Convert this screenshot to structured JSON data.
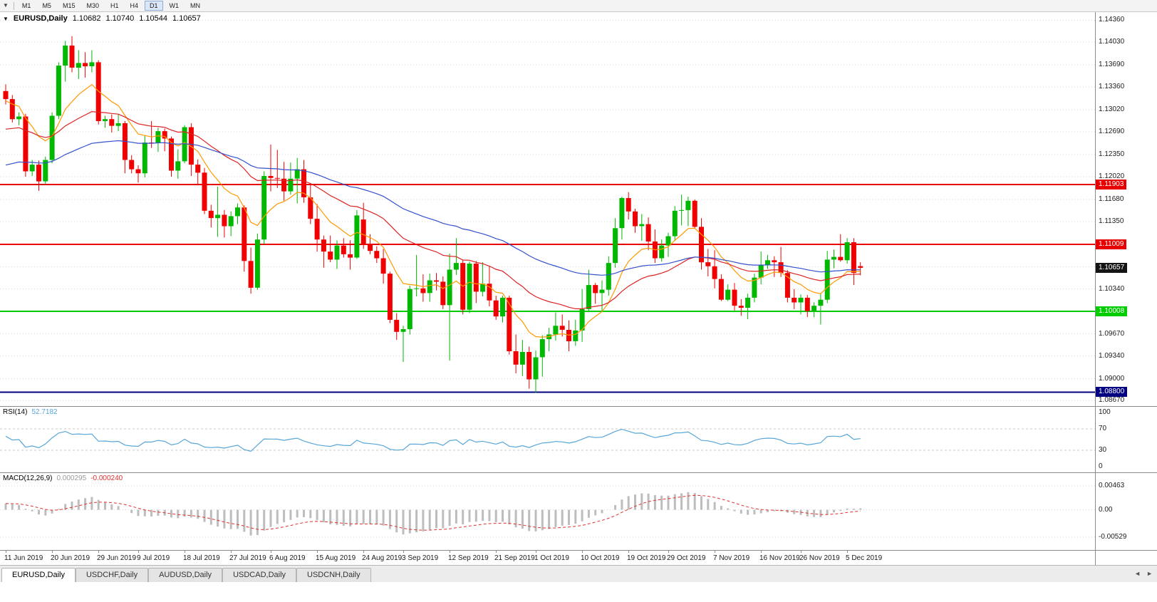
{
  "toolbar": {
    "timeframes": [
      "M1",
      "M5",
      "M15",
      "M30",
      "H1",
      "H4",
      "D1",
      "W1",
      "MN"
    ],
    "active": "D1"
  },
  "icons": {
    "toolbar_menu": "▼",
    "chart_menu": "▼",
    "tab_scroll_left": "◄",
    "tab_scroll_right": "►"
  },
  "header": {
    "symbol": "EURUSD,Daily",
    "open": "1.10682",
    "high": "1.10740",
    "low": "1.10544",
    "close": "1.10657"
  },
  "chart_data": {
    "type": "candlestick",
    "title": "EURUSD Daily",
    "ylim": [
      1.0859,
      1.1448
    ],
    "colors": {
      "up": "#00b800",
      "down": "#f00000"
    },
    "price_grid": [
      {
        "value": 1.1436,
        "label": "1.14360"
      },
      {
        "value": 1.1403,
        "label": "1.14030"
      },
      {
        "value": 1.1369,
        "label": "1.13690"
      },
      {
        "value": 1.1336,
        "label": "1.13360"
      },
      {
        "value": 1.1302,
        "label": "1.13020"
      },
      {
        "value": 1.1269,
        "label": "1.12690"
      },
      {
        "value": 1.1235,
        "label": "1.12350"
      },
      {
        "value": 1.1202,
        "label": "1.12020"
      },
      {
        "value": 1.1168,
        "label": "1.11680"
      },
      {
        "value": 1.1135,
        "label": "1.11350"
      },
      {
        "value": 1.1101,
        "label": null
      },
      {
        "value": 1.1067,
        "label": null
      },
      {
        "value": 1.1034,
        "label": "1.10340"
      },
      {
        "value": 1.1,
        "label": null
      },
      {
        "value": 1.0967,
        "label": "1.09670"
      },
      {
        "value": 1.0934,
        "label": "1.09340"
      },
      {
        "value": 1.09,
        "label": "1.09000"
      },
      {
        "value": 1.0867,
        "label": "1.08670"
      }
    ],
    "hlines": [
      {
        "value": 1.11903,
        "label": "1.11903",
        "color": "#e80000",
        "width": 2
      },
      {
        "value": 1.11009,
        "label": "1.11009",
        "color": "#e80000",
        "width": 2
      },
      {
        "value": 1.10008,
        "label": "1.10008",
        "color": "#00cc00",
        "width": 2
      },
      {
        "value": 1.088,
        "label": "1.08800",
        "color": "#000080",
        "width": 2
      }
    ],
    "current_price": {
      "value": 1.10657,
      "label": "1.10657",
      "bg": "#141414"
    },
    "moving_averages": [
      {
        "period": 10,
        "color": "#ff9900",
        "seed": 1.1315
      },
      {
        "period": 30,
        "color": "#dd2222",
        "seed": 1.127
      },
      {
        "period": 60,
        "color": "#3450cc",
        "seed": 1.1216
      }
    ],
    "x_labels": [
      {
        "index": 0,
        "label": "11 Jun 2019"
      },
      {
        "index": 7,
        "label": "20 Jun 2019"
      },
      {
        "index": 14,
        "label": "29 Jun 2019"
      },
      {
        "index": 20,
        "label": "9 Jul 2019"
      },
      {
        "index": 27,
        "label": "18 Jul 2019"
      },
      {
        "index": 34,
        "label": "27 Jul 2019"
      },
      {
        "index": 40,
        "label": "6 Aug 2019"
      },
      {
        "index": 47,
        "label": "15 Aug 2019"
      },
      {
        "index": 54,
        "label": "24 Aug 2019"
      },
      {
        "index": 60,
        "label": "3 Sep 2019"
      },
      {
        "index": 67,
        "label": "12 Sep 2019"
      },
      {
        "index": 74,
        "label": "21 Sep 2019"
      },
      {
        "index": 80,
        "label": "1 Oct 2019"
      },
      {
        "index": 87,
        "label": "10 Oct 2019"
      },
      {
        "index": 94,
        "label": "19 Oct 2019"
      },
      {
        "index": 100,
        "label": "29 Oct 2019"
      },
      {
        "index": 107,
        "label": "7 Nov 2019"
      },
      {
        "index": 114,
        "label": "16 Nov 2019"
      },
      {
        "index": 120,
        "label": "26 Nov 2019"
      },
      {
        "index": 127,
        "label": "5 Dec 2019"
      }
    ],
    "candles": [
      [
        1.133,
        1.134,
        1.131,
        1.1318
      ],
      [
        1.1318,
        1.1324,
        1.1283,
        1.1288
      ],
      [
        1.1288,
        1.1298,
        1.1279,
        1.1292
      ],
      [
        1.1292,
        1.1296,
        1.1202,
        1.121
      ],
      [
        1.121,
        1.1227,
        1.1203,
        1.122
      ],
      [
        1.122,
        1.1226,
        1.1181,
        1.1195
      ],
      [
        1.1195,
        1.1232,
        1.119,
        1.1227
      ],
      [
        1.1227,
        1.1298,
        1.1222,
        1.1293
      ],
      [
        1.1293,
        1.1373,
        1.1288,
        1.1368
      ],
      [
        1.1368,
        1.1405,
        1.1344,
        1.1398
      ],
      [
        1.1398,
        1.1412,
        1.1358,
        1.1365
      ],
      [
        1.1365,
        1.1391,
        1.1348,
        1.1372
      ],
      [
        1.1372,
        1.1388,
        1.135,
        1.1367
      ],
      [
        1.1367,
        1.1391,
        1.1358,
        1.1373
      ],
      [
        1.1373,
        1.1376,
        1.128,
        1.1285
      ],
      [
        1.1285,
        1.1293,
        1.1275,
        1.1288
      ],
      [
        1.1288,
        1.1295,
        1.1268,
        1.1278
      ],
      [
        1.1278,
        1.1295,
        1.127,
        1.1282
      ],
      [
        1.1282,
        1.1285,
        1.1207,
        1.1227
      ],
      [
        1.1227,
        1.1234,
        1.1207,
        1.1213
      ],
      [
        1.1213,
        1.1219,
        1.1193,
        1.1207
      ],
      [
        1.1207,
        1.1264,
        1.1201,
        1.1253
      ],
      [
        1.1253,
        1.1285,
        1.1245,
        1.1252
      ],
      [
        1.1252,
        1.1275,
        1.1239,
        1.127
      ],
      [
        1.127,
        1.1274,
        1.124,
        1.1259
      ],
      [
        1.1259,
        1.1262,
        1.1202,
        1.1211
      ],
      [
        1.1211,
        1.1243,
        1.1199,
        1.1225
      ],
      [
        1.1225,
        1.1279,
        1.1222,
        1.1276
      ],
      [
        1.1276,
        1.1282,
        1.1203,
        1.122
      ],
      [
        1.122,
        1.1228,
        1.1189,
        1.1208
      ],
      [
        1.1208,
        1.1215,
        1.1146,
        1.1151
      ],
      [
        1.1151,
        1.116,
        1.1126,
        1.114
      ],
      [
        1.114,
        1.1187,
        1.1112,
        1.1145
      ],
      [
        1.1145,
        1.1152,
        1.1111,
        1.1128
      ],
      [
        1.1128,
        1.115,
        1.1113,
        1.1143
      ],
      [
        1.1143,
        1.1162,
        1.1131,
        1.1156
      ],
      [
        1.1156,
        1.1159,
        1.106,
        1.1076
      ],
      [
        1.1076,
        1.1096,
        1.1027,
        1.1036
      ],
      [
        1.1036,
        1.1117,
        1.1033,
        1.1108
      ],
      [
        1.1108,
        1.121,
        1.1101,
        1.1203
      ],
      [
        1.1203,
        1.125,
        1.118,
        1.12
      ],
      [
        1.12,
        1.1242,
        1.1185,
        1.1199
      ],
      [
        1.1199,
        1.1224,
        1.1166,
        1.118
      ],
      [
        1.118,
        1.1223,
        1.1175,
        1.1199
      ],
      [
        1.1199,
        1.123,
        1.1162,
        1.1213
      ],
      [
        1.1213,
        1.1227,
        1.1163,
        1.1171
      ],
      [
        1.1171,
        1.1192,
        1.1131,
        1.1139
      ],
      [
        1.1139,
        1.1161,
        1.109,
        1.1108
      ],
      [
        1.1108,
        1.1114,
        1.1066,
        1.109
      ],
      [
        1.109,
        1.1114,
        1.1074,
        1.1078
      ],
      [
        1.1078,
        1.1107,
        1.1064,
        1.1099
      ],
      [
        1.1099,
        1.111,
        1.1081,
        1.1086
      ],
      [
        1.1086,
        1.1107,
        1.1063,
        1.1081
      ],
      [
        1.1081,
        1.1152,
        1.1079,
        1.1144
      ],
      [
        1.1138,
        1.1163,
        1.1094,
        1.1101
      ],
      [
        1.1101,
        1.1116,
        1.1086,
        1.1091
      ],
      [
        1.1091,
        1.1098,
        1.1073,
        1.108
      ],
      [
        1.108,
        1.1094,
        1.1042,
        1.1057
      ],
      [
        1.1057,
        1.106,
        1.0983,
        1.0988
      ],
      [
        1.0988,
        1.0998,
        1.0958,
        1.097
      ],
      [
        1.097,
        1.0979,
        1.0925,
        1.0974
      ],
      [
        1.0974,
        1.1039,
        1.0966,
        1.1034
      ],
      [
        1.1034,
        1.1085,
        1.1023,
        1.1035
      ],
      [
        1.1035,
        1.1056,
        1.1015,
        1.1028
      ],
      [
        1.1028,
        1.1057,
        1.1015,
        1.1047
      ],
      [
        1.1047,
        1.1058,
        1.1032,
        1.1045
      ],
      [
        1.1045,
        1.1053,
        1.1004,
        1.101
      ],
      [
        1.101,
        1.1087,
        1.0927,
        1.1063
      ],
      [
        1.1063,
        1.111,
        1.1055,
        1.1073
      ],
      [
        1.1073,
        1.1078,
        1.0996,
        1.1003
      ],
      [
        1.1003,
        1.1075,
        1.0998,
        1.1072
      ],
      [
        1.1072,
        1.1076,
        1.1013,
        1.103
      ],
      [
        1.103,
        1.1074,
        1.1023,
        1.1042
      ],
      [
        1.1042,
        1.1068,
        1.1008,
        1.1017
      ],
      [
        1.1017,
        1.1024,
        1.0988,
        1.0993
      ],
      [
        1.0993,
        1.1024,
        1.0984,
        1.1021
      ],
      [
        1.1021,
        1.1024,
        1.0936,
        1.0941
      ],
      [
        1.0941,
        1.0966,
        1.0908,
        1.0921
      ],
      [
        1.0921,
        1.0958,
        1.0904,
        1.094
      ],
      [
        1.094,
        1.0948,
        1.0885,
        1.0899
      ],
      [
        1.0899,
        1.0942,
        1.0879,
        1.0932
      ],
      [
        1.0932,
        1.0965,
        1.0903,
        1.0959
      ],
      [
        1.0959,
        1.0976,
        1.0941,
        1.0966
      ],
      [
        1.0966,
        1.0999,
        1.0957,
        1.0979
      ],
      [
        1.0979,
        1.0996,
        1.0963,
        1.0973
      ],
      [
        1.0973,
        1.0987,
        1.0941,
        1.0956
      ],
      [
        1.0956,
        1.0988,
        1.0949,
        1.0972
      ],
      [
        1.0972,
        1.1034,
        1.0955,
        1.1004
      ],
      [
        1.1004,
        1.1063,
        1.1001,
        1.104
      ],
      [
        1.104,
        1.1043,
        1.1012,
        1.1028
      ],
      [
        1.1028,
        1.1047,
        1.1001,
        1.1033
      ],
      [
        1.1033,
        1.1083,
        1.1024,
        1.1073
      ],
      [
        1.1073,
        1.114,
        1.1066,
        1.1125
      ],
      [
        1.1125,
        1.1172,
        1.1108,
        1.117
      ],
      [
        1.117,
        1.1179,
        1.1138,
        1.115
      ],
      [
        1.115,
        1.1154,
        1.1118,
        1.1128
      ],
      [
        1.1128,
        1.1146,
        1.1106,
        1.1131
      ],
      [
        1.1131,
        1.1141,
        1.1092,
        1.1105
      ],
      [
        1.1105,
        1.1123,
        1.1073,
        1.108
      ],
      [
        1.108,
        1.1108,
        1.1075,
        1.1099
      ],
      [
        1.1099,
        1.1118,
        1.1082,
        1.1113
      ],
      [
        1.1113,
        1.1158,
        1.1106,
        1.1151
      ],
      [
        1.1151,
        1.1175,
        1.1129,
        1.1152
      ],
      [
        1.1152,
        1.1172,
        1.1128,
        1.1166
      ],
      [
        1.1166,
        1.1168,
        1.1124,
        1.1127
      ],
      [
        1.1127,
        1.114,
        1.1063,
        1.1074
      ],
      [
        1.1074,
        1.1094,
        1.1053,
        1.1068
      ],
      [
        1.1068,
        1.1092,
        1.1035,
        1.1049
      ],
      [
        1.1049,
        1.1056,
        1.1016,
        1.1018
      ],
      [
        1.1018,
        1.1041,
        1.1016,
        1.1033
      ],
      [
        1.1033,
        1.1043,
        1.1002,
        1.1009
      ],
      [
        1.1009,
        1.1019,
        1.0994,
        1.1006
      ],
      [
        1.1006,
        1.1027,
        1.0989,
        1.1021
      ],
      [
        1.1021,
        1.1057,
        1.1014,
        1.1051
      ],
      [
        1.1051,
        1.109,
        1.1041,
        1.107
      ],
      [
        1.107,
        1.1085,
        1.1064,
        1.1077
      ],
      [
        1.1077,
        1.1083,
        1.1052,
        1.1074
      ],
      [
        1.1074,
        1.1097,
        1.1052,
        1.1058
      ],
      [
        1.1058,
        1.1062,
        1.1014,
        1.1021
      ],
      [
        1.1021,
        1.1034,
        1.1004,
        1.1014
      ],
      [
        1.1014,
        1.1026,
        1.0996,
        1.1021
      ],
      [
        1.1021,
        1.1025,
        1.0992,
        1.1001
      ],
      [
        1.1001,
        1.1014,
        1.0992,
        1.1009
      ],
      [
        1.1009,
        1.1028,
        1.0981,
        1.1018
      ],
      [
        1.1018,
        1.1091,
        1.1013,
        1.1078
      ],
      [
        1.1078,
        1.1093,
        1.1065,
        1.1082
      ],
      [
        1.1082,
        1.1116,
        1.1075,
        1.1077
      ],
      [
        1.1077,
        1.111,
        1.1072,
        1.1104
      ],
      [
        1.1104,
        1.111,
        1.104,
        1.1058
      ],
      [
        1.10682,
        1.1074,
        1.10544,
        1.10657
      ]
    ]
  },
  "rsi": {
    "name": "RSI(14)",
    "value": "52.7182",
    "period": 14,
    "color": "#58a6d8",
    "ylim": [
      0,
      100
    ],
    "levels": [
      {
        "v": 100,
        "label": "100",
        "dashed": false
      },
      {
        "v": 70,
        "label": "70",
        "dashed": true
      },
      {
        "v": 30,
        "label": "30",
        "dashed": true
      },
      {
        "v": 0,
        "label": "0",
        "dashed": false
      }
    ]
  },
  "macd": {
    "name": "MACD(12,26,9)",
    "main_value": "0.000295",
    "signal_value": "-0.000240",
    "fast": 12,
    "slow": 26,
    "signal_period": 9,
    "histogram_color": "#bdbdbd",
    "signal_color": "#e03030",
    "ylim": [
      -0.00529,
      0.00463
    ],
    "warmup": {
      "fast": 1.1293,
      "slow": 1.1282
    },
    "levels": [
      {
        "v": 0.00463,
        "label": "0.00463"
      },
      {
        "v": 0,
        "label": "0.00"
      },
      {
        "v": -0.00529,
        "label": "-0.00529"
      }
    ]
  },
  "tabs": [
    {
      "label": "EURUSD,Daily",
      "active": true
    },
    {
      "label": "USDCHF,Daily",
      "active": false
    },
    {
      "label": "AUDUSD,Daily",
      "active": false
    },
    {
      "label": "USDCAD,Daily",
      "active": false
    },
    {
      "label": "USDCNH,Daily",
      "active": false
    }
  ]
}
